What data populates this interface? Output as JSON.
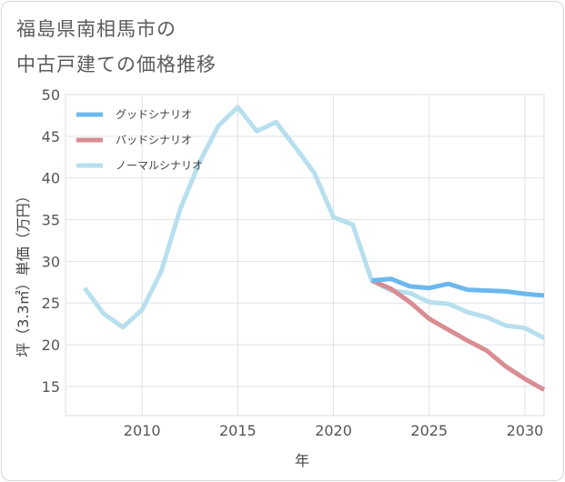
{
  "title": {
    "line1": "福島県南相馬市の",
    "line2": "中古戸建ての価格推移"
  },
  "chart_data": {
    "type": "line",
    "xlabel": "年",
    "ylabel": "坪（3.3㎡）単価（万円）",
    "xlim": [
      2006,
      2031
    ],
    "ylim": [
      11.5,
      50
    ],
    "xticks": [
      2010,
      2015,
      2020,
      2025,
      2030
    ],
    "yticks": [
      15,
      20,
      25,
      30,
      35,
      40,
      45,
      50
    ],
    "grid": true,
    "legend_position": "top-left",
    "series": [
      {
        "name": "グッドシナリオ",
        "color": "#6bb8ee",
        "x": [
          2022,
          2023,
          2024,
          2025,
          2026,
          2027,
          2028,
          2029,
          2030,
          2031
        ],
        "y": [
          27.7,
          27.9,
          27.0,
          26.8,
          27.3,
          26.6,
          26.5,
          26.4,
          26.1,
          25.9
        ]
      },
      {
        "name": "バッドシナリオ",
        "color": "#d98c92",
        "x": [
          2022,
          2023,
          2024,
          2025,
          2026,
          2027,
          2028,
          2029,
          2030,
          2031
        ],
        "y": [
          27.7,
          26.7,
          25.1,
          23.1,
          21.8,
          20.5,
          19.3,
          17.4,
          15.9,
          14.6
        ]
      },
      {
        "name": "ノーマルシナリオ",
        "color": "#b7dfee",
        "x": [
          2007,
          2008,
          2009,
          2010,
          2011,
          2012,
          2013,
          2014,
          2015,
          2016,
          2017,
          2018,
          2019,
          2020,
          2021,
          2022,
          2023,
          2024,
          2025,
          2026,
          2027,
          2028,
          2029,
          2030,
          2031
        ],
        "y": [
          26.8,
          23.7,
          22.1,
          24.2,
          28.8,
          36.3,
          41.9,
          46.3,
          48.5,
          45.6,
          46.7,
          43.7,
          40.6,
          35.3,
          34.4,
          27.7,
          26.5,
          26.2,
          25.1,
          24.9,
          23.9,
          23.3,
          22.3,
          22.0,
          20.8
        ]
      }
    ]
  }
}
